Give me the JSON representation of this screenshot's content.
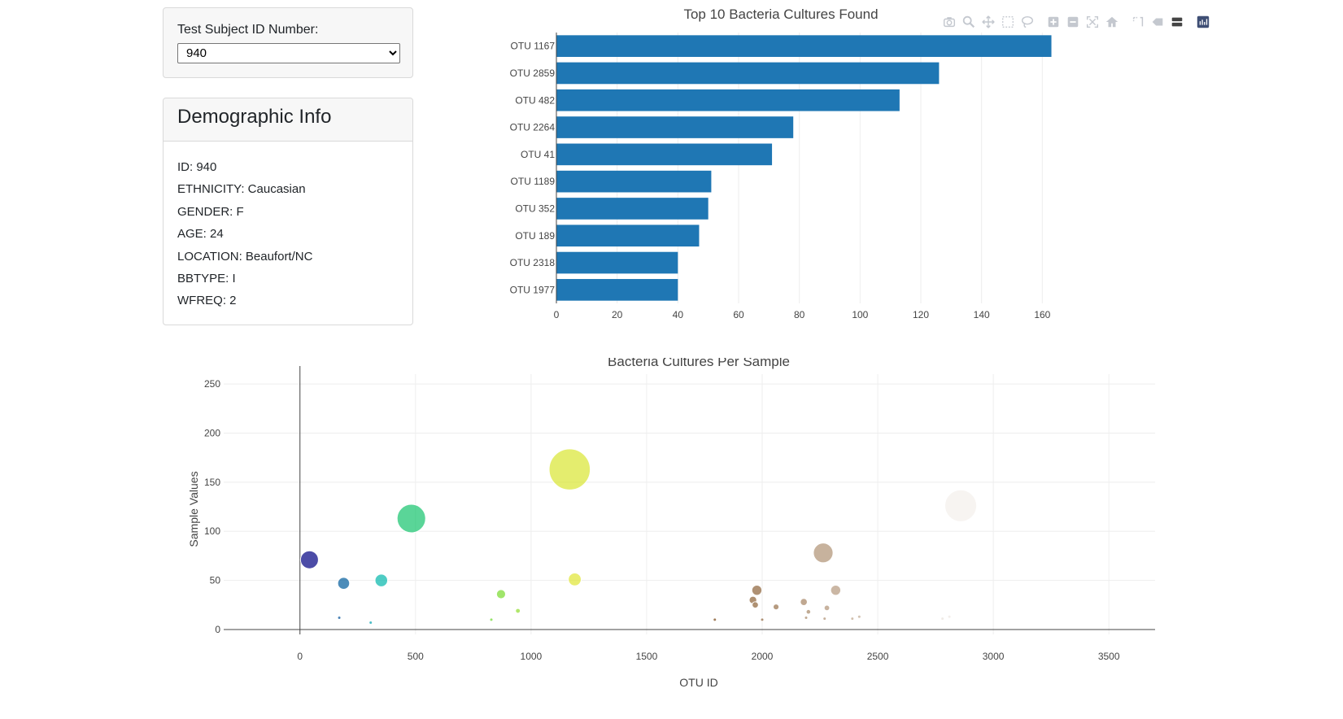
{
  "selector": {
    "label": "Test Subject ID Number:",
    "selected": "940"
  },
  "demographics": {
    "title": "Demographic Info",
    "lines": [
      "ID: 940",
      "ETHNICITY: Caucasian",
      "GENDER: F",
      "AGE: 24",
      "LOCATION: Beaufort/NC",
      "BBTYPE: I",
      "WFREQ: 2"
    ]
  },
  "modebar": {
    "buttons": [
      "camera-icon",
      "zoom-icon",
      "pan-icon",
      "box-select-icon",
      "lasso-select-icon",
      "zoom-in-icon",
      "zoom-out-icon",
      "autoscale-icon",
      "reset-axes-icon",
      "spike-lines-icon",
      "hover-closest-icon",
      "hover-compare-icon",
      "plotly-logo-icon"
    ]
  },
  "colors": {
    "bar": "#1f77b4",
    "grid": "#eeeeee",
    "axis_text": "#444444",
    "modebar_icon": "#c4c8cf",
    "plotly_logo": "#3f4f75"
  },
  "chart_data": [
    {
      "type": "bar",
      "orientation": "horizontal",
      "title": "Top 10 Bacteria Cultures Found",
      "categories": [
        "OTU 1167",
        "OTU 2859",
        "OTU 482",
        "OTU 2264",
        "OTU 41",
        "OTU 1189",
        "OTU 352",
        "OTU 189",
        "OTU 2318",
        "OTU 1977"
      ],
      "values": [
        163,
        126,
        113,
        78,
        71,
        51,
        50,
        47,
        40,
        40
      ],
      "xlim": [
        0,
        165
      ],
      "x_ticks": [
        0,
        20,
        40,
        60,
        80,
        100,
        120,
        140,
        160
      ],
      "grid": true
    },
    {
      "type": "scatter",
      "mode": "bubble",
      "title": "Bacteria Cultures Per Sample",
      "xlabel": "OTU ID",
      "ylabel": "Sample Values",
      "xlim": [
        -330,
        3700
      ],
      "ylim": [
        -5,
        260
      ],
      "x_ticks": [
        0,
        500,
        1000,
        1500,
        2000,
        2500,
        3000,
        3500
      ],
      "y_ticks": [
        0,
        50,
        100,
        150,
        200,
        250
      ],
      "grid": true,
      "colorscale": "Earth",
      "x": [
        41,
        189,
        352,
        482,
        1167,
        1189,
        2264,
        2859,
        2318,
        1977,
        870,
        943,
        1960,
        1970,
        2060,
        2180,
        2280,
        2200,
        2420,
        2390,
        2810,
        2780,
        2960,
        170,
        306,
        828,
        1795,
        2000,
        2270,
        2190
      ],
      "y": [
        71,
        47,
        50,
        113,
        163,
        51,
        78,
        126,
        40,
        40,
        36,
        19,
        30,
        25,
        23,
        28,
        22,
        18,
        13,
        11,
        13,
        11,
        10,
        12,
        7,
        10,
        10,
        10,
        11,
        12
      ],
      "sizes": [
        71,
        47,
        50,
        113,
        163,
        51,
        78,
        126,
        40,
        40,
        36,
        19,
        30,
        25,
        23,
        28,
        22,
        18,
        13,
        11,
        13,
        11,
        10,
        12,
        7,
        10,
        10,
        10,
        11,
        12
      ]
    }
  ]
}
